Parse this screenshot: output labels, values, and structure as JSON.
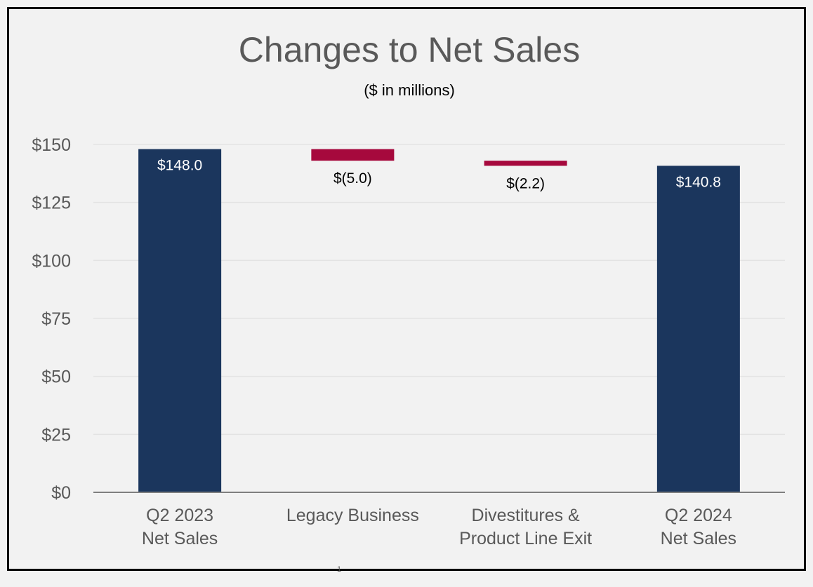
{
  "page_number": "1",
  "chart_data": {
    "type": "bar",
    "subtype": "waterfall",
    "title": "Changes to Net Sales",
    "subtitle": "($ in millions)",
    "categories": [
      "Q2 2023\nNet Sales",
      "Legacy Business",
      "Divestitures &\nProduct Line Exit",
      "Q2 2024\nNet Sales"
    ],
    "values": [
      148.0,
      -5.0,
      -2.2,
      140.8
    ],
    "bar_kinds": [
      "total",
      "decrease",
      "decrease",
      "total"
    ],
    "data_labels": [
      "$148.0",
      "$(5.0)",
      "$(2.2)",
      "$140.8"
    ],
    "ylim": [
      0,
      150
    ],
    "yticks": [
      0,
      25,
      50,
      75,
      100,
      125,
      150
    ],
    "ytick_labels": [
      "$0",
      "$25",
      "$50",
      "$75",
      "$100",
      "$125",
      "$150"
    ],
    "grid": true,
    "legend": "none",
    "colors": {
      "total": "#1b365d",
      "decrease": "#a6093d",
      "grid": "#e3e3e3",
      "axis": "#7f7f7f",
      "title": "#595959"
    }
  }
}
